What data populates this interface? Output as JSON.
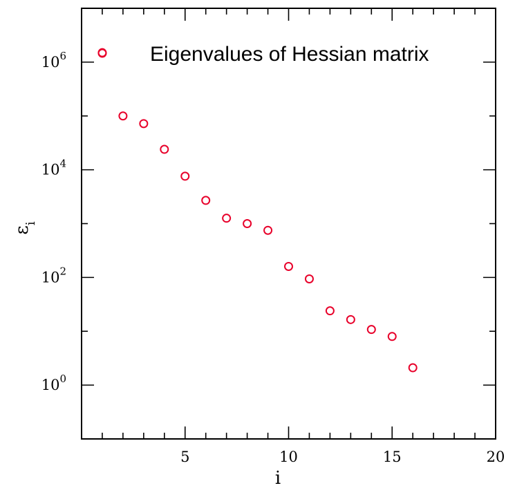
{
  "chart_data": {
    "type": "scatter",
    "xlabel": "i",
    "ylabel": {
      "base": "ε",
      "subscript": "i"
    },
    "xlim": [
      0,
      20
    ],
    "ylim": [
      0.1,
      10000000
    ],
    "yscale": "log",
    "grid": false,
    "legend_position": "top-right",
    "x_ticks": [
      {
        "value": 5,
        "label": "5"
      },
      {
        "value": 10,
        "label": "10"
      },
      {
        "value": 15,
        "label": "15"
      },
      {
        "value": 20,
        "label": "20"
      }
    ],
    "y_ticks": [
      {
        "value": 1,
        "base": "10",
        "exp": "0"
      },
      {
        "value": 100,
        "base": "10",
        "exp": "2"
      },
      {
        "value": 10000,
        "base": "10",
        "exp": "4"
      },
      {
        "value": 1000000,
        "base": "10",
        "exp": "6"
      }
    ],
    "marker_color": "#e8002a",
    "series": [
      {
        "name": "Eigenvalues of Hessian matrix",
        "x": [
          1,
          2,
          3,
          4,
          5,
          6,
          7,
          8,
          9,
          10,
          11,
          12,
          13,
          14,
          15,
          16
        ],
        "y": [
          1500000,
          100000,
          72000,
          24000,
          7600,
          2700,
          1260,
          1000,
          750,
          160,
          94,
          24,
          16.5,
          10.8,
          8,
          2.1
        ]
      }
    ]
  }
}
